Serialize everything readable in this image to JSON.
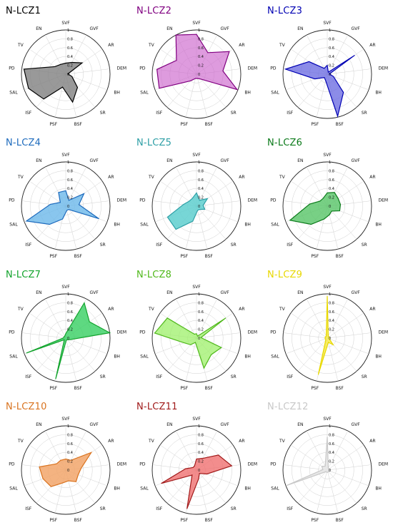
{
  "chart_data": [
    {
      "type": "radar",
      "title": "N-LCZ1",
      "color": "#000000",
      "fill": "#808080",
      "fill_opacity": 0.8,
      "axes": [
        "SVF",
        "GVF",
        "AR",
        "DEM",
        "BH",
        "SR",
        "BSF",
        "PSF",
        "ISF",
        "SAL",
        "PD",
        "TV",
        "EN"
      ],
      "values": [
        0.25,
        0.3,
        0.45,
        0.05,
        0.15,
        0.4,
        0.65,
        0.3,
        0.75,
        0.9,
        0.95,
        0.3,
        0.25
      ]
    },
    {
      "type": "radar",
      "title": "N-LCZ2",
      "color": "#800080",
      "fill": "#cc66cc",
      "fill_opacity": 0.65,
      "axes": [
        "SVF",
        "GVF",
        "AR",
        "DEM",
        "BH",
        "SR",
        "BSF",
        "PSF",
        "ISF",
        "SAL",
        "PD",
        "TV",
        "EN"
      ],
      "values": [
        0.9,
        0.55,
        0.9,
        0.6,
        0.98,
        0.15,
        0.1,
        0.1,
        0.2,
        0.9,
        0.9,
        0.55,
        1.0
      ]
    },
    {
      "type": "radar",
      "title": "N-LCZ3",
      "color": "#0000b3",
      "fill": "#6666e0",
      "fill_opacity": 0.75,
      "axes": [
        "SVF",
        "GVF",
        "AR",
        "DEM",
        "BH",
        "SR",
        "BSF",
        "PSF",
        "ISF",
        "SAL",
        "PD",
        "TV",
        "EN"
      ],
      "values": [
        0.2,
        0.05,
        0.75,
        0.05,
        0.15,
        0.55,
        0.98,
        0.15,
        0.1,
        0.3,
        0.95,
        0.5,
        0.15
      ]
    },
    {
      "type": "radar",
      "title": "N-LCZ4",
      "color": "#1e6bbd",
      "fill": "#6bb8ea",
      "fill_opacity": 0.8,
      "axes": [
        "SVF",
        "GVF",
        "AR",
        "DEM",
        "BH",
        "SR",
        "BSF",
        "PSF",
        "ISF",
        "SAL",
        "PD",
        "TV",
        "EN"
      ],
      "values": [
        0.35,
        0.15,
        0.5,
        0.3,
        0.8,
        0.1,
        0.1,
        0.3,
        0.55,
        0.95,
        0.35,
        0.15,
        0.35
      ]
    },
    {
      "type": "radar",
      "title": "N-LCZ5",
      "color": "#2e9fa6",
      "fill": "#5fcfcf",
      "fill_opacity": 0.85,
      "axes": [
        "SVF",
        "GVF",
        "AR",
        "DEM",
        "BH",
        "SR",
        "BSF",
        "PSF",
        "ISF",
        "SAL",
        "PD",
        "TV",
        "EN"
      ],
      "values": [
        0.3,
        0.15,
        0.3,
        0.15,
        0.2,
        0.1,
        0.1,
        0.35,
        0.7,
        0.7,
        0.3,
        0.2,
        0.2
      ]
    },
    {
      "type": "radar",
      "title": "N-LCZ6",
      "color": "#0b7a1a",
      "fill": "#56c466",
      "fill_opacity": 0.8,
      "axes": [
        "SVF",
        "GVF",
        "AR",
        "DEM",
        "BH",
        "SR",
        "BSF",
        "PSF",
        "ISF",
        "SAL",
        "PD",
        "TV",
        "EN"
      ],
      "values": [
        0.3,
        0.35,
        0.3,
        0.3,
        0.3,
        0.15,
        0.2,
        0.3,
        0.55,
        0.9,
        0.4,
        0.2,
        0.2
      ]
    },
    {
      "type": "radar",
      "title": "N-LCZ7",
      "color": "#12a32c",
      "fill": "#36d061",
      "fill_opacity": 0.8,
      "axes": [
        "SVF",
        "GVF",
        "AR",
        "DEM",
        "BH",
        "SR",
        "BSF",
        "PSF",
        "ISF",
        "SAL",
        "PD",
        "TV",
        "EN"
      ],
      "values": [
        0.1,
        0.9,
        0.65,
        1.0,
        0.1,
        0.05,
        0.05,
        0.95,
        0.05,
        0.95,
        0.05,
        0.05,
        0.05
      ]
    },
    {
      "type": "radar",
      "title": "N-LCZ8",
      "color": "#4fb81a",
      "fill": "#9ef06a",
      "fill_opacity": 0.75,
      "axes": [
        "SVF",
        "GVF",
        "AR",
        "DEM",
        "BH",
        "SR",
        "BSF",
        "PSF",
        "ISF",
        "SAL",
        "PD",
        "TV",
        "EN"
      ],
      "values": [
        0.1,
        0.05,
        0.8,
        0.1,
        0.6,
        0.5,
        0.7,
        0.1,
        0.2,
        0.3,
        0.95,
        0.8,
        0.1
      ]
    },
    {
      "type": "radar",
      "title": "N-LCZ9",
      "color": "#e8d800",
      "fill": "#f6ea44",
      "fill_opacity": 0.8,
      "axes": [
        "SVF",
        "GVF",
        "AR",
        "DEM",
        "BH",
        "SR",
        "BSF",
        "PSF",
        "ISF",
        "SAL",
        "PD",
        "TV",
        "EN"
      ],
      "values": [
        0.95,
        0.05,
        0.05,
        0.05,
        0.05,
        0.2,
        0.1,
        0.85,
        0.05,
        0.05,
        0.05,
        0.05,
        0.05
      ]
    },
    {
      "type": "radar",
      "title": "N-LCZ10",
      "color": "#d9731f",
      "fill": "#f2a66b",
      "fill_opacity": 0.85,
      "axes": [
        "SVF",
        "GVF",
        "AR",
        "DEM",
        "BH",
        "SR",
        "BSF",
        "PSF",
        "ISF",
        "SAL",
        "PD",
        "TV",
        "EN"
      ],
      "values": [
        0.25,
        0.25,
        0.7,
        0.35,
        0.3,
        0.35,
        0.25,
        0.3,
        0.5,
        0.55,
        0.6,
        0.25,
        0.25
      ]
    },
    {
      "type": "radar",
      "title": "N-LCZ11",
      "color": "#a01a1a",
      "fill": "#f07070",
      "fill_opacity": 0.8,
      "axes": [
        "SVF",
        "GVF",
        "AR",
        "DEM",
        "BH",
        "SR",
        "BSF",
        "PSF",
        "ISF",
        "SAL",
        "PD",
        "TV",
        "EN"
      ],
      "values": [
        0.25,
        0.3,
        0.6,
        0.8,
        0.25,
        0.1,
        0.2,
        0.9,
        0.15,
        0.85,
        0.25,
        0.1,
        0.1
      ]
    },
    {
      "type": "radar",
      "title": "N-LCZ12",
      "color": "#c8c8c8",
      "fill": "#e6e6e6",
      "fill_opacity": 0.9,
      "axes": [
        "SVF",
        "GVF",
        "AR",
        "DEM",
        "BH",
        "SR",
        "BSF",
        "PSF",
        "ISF",
        "SAL",
        "PD",
        "TV",
        "EN"
      ],
      "values": [
        0.75,
        0.05,
        0.05,
        0.05,
        0.05,
        0.05,
        0.05,
        0.05,
        0.05,
        0.98,
        0.1,
        0.15,
        0.1
      ]
    }
  ],
  "ticks": [
    "0",
    "0.2",
    "0.4",
    "0.6",
    "0.8",
    "1"
  ]
}
